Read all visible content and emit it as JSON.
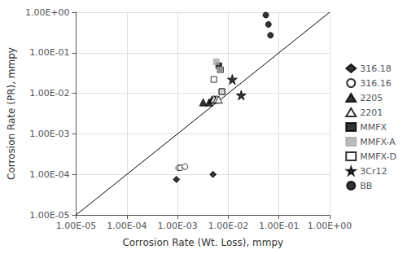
{
  "chart_data": {
    "type": "scatter",
    "xlabel": "Corrosion Rate (Wt. Loss), mmpy",
    "ylabel": "Corrosion Rate (PR), mmpy",
    "log": true,
    "grid": true,
    "legend": "right",
    "xlim": [
      1e-05,
      1
    ],
    "ylim": [
      1e-05,
      1
    ],
    "xticks": [
      {
        "value": 1e-05,
        "label": "1.00E-05"
      },
      {
        "value": 0.0001,
        "label": "1.00E-04"
      },
      {
        "value": 0.001,
        "label": "1.00E-03"
      },
      {
        "value": 0.01,
        "label": "1.00E-02"
      },
      {
        "value": 0.1,
        "label": "1.00E-01"
      },
      {
        "value": 1,
        "label": "1.00E+00"
      }
    ],
    "yticks": [
      {
        "value": 1e-05,
        "label": "1.00E-05"
      },
      {
        "value": 0.0001,
        "label": "1.00E-04"
      },
      {
        "value": 0.001,
        "label": "1.00E-03"
      },
      {
        "value": 0.01,
        "label": "1.00E-02"
      },
      {
        "value": 0.1,
        "label": "1.00E-01"
      },
      {
        "value": 1,
        "label": "1.00E+00"
      }
    ],
    "series": [
      {
        "type": "line",
        "color": "black",
        "line_style": "solid",
        "x": [
          1e-05,
          1
        ],
        "values": [
          1e-05,
          1
        ]
      },
      {
        "name": "316.18",
        "type": "scatter",
        "marker": "diamond",
        "color": "black",
        "x": [
          0.00095,
          0.005
        ],
        "values": [
          7.5e-05,
          0.0001
        ]
      },
      {
        "name": "316.16",
        "type": "scatter",
        "marker": "circle-open",
        "color": "black",
        "x": [
          0.00105,
          0.00115,
          0.0014
        ],
        "values": [
          0.000145,
          0.000145,
          0.000155
        ]
      },
      {
        "name": "2205",
        "type": "scatter",
        "marker": "triangle",
        "color": "black",
        "x": [
          0.0032,
          0.0042,
          0.0048,
          0.0055
        ],
        "values": [
          0.006,
          0.006,
          0.007,
          0.007
        ]
      },
      {
        "name": "2201",
        "type": "scatter",
        "marker": "triangle-open",
        "color": "black",
        "x": [
          0.0052,
          0.006,
          0.0065
        ],
        "values": [
          0.0072,
          0.0072,
          0.007
        ]
      },
      {
        "name": "MMFX",
        "type": "scatter",
        "marker": "square",
        "color": "black",
        "x": [
          0.0065,
          0.007,
          0.0075
        ],
        "values": [
          0.048,
          0.038,
          0.011
        ]
      },
      {
        "name": "MMFX-A",
        "type": "scatter",
        "marker": "square",
        "color": "#aaaaaa",
        "x": [
          0.0058,
          0.0068
        ],
        "values": [
          0.06,
          0.038
        ]
      },
      {
        "name": "MMFX-D",
        "type": "scatter",
        "marker": "square-open",
        "color": "black",
        "x": [
          0.0052,
          0.0075
        ],
        "values": [
          0.022,
          0.011
        ]
      },
      {
        "name": "3Cr12",
        "type": "scatter",
        "marker": "star",
        "color": "black",
        "x": [
          0.012,
          0.018
        ],
        "values": [
          0.022,
          0.009
        ]
      },
      {
        "name": "BB",
        "type": "scatter",
        "marker": "circle",
        "color": "black",
        "x": [
          0.055,
          0.062,
          0.068
        ],
        "values": [
          0.85,
          0.5,
          0.27
        ]
      }
    ]
  }
}
